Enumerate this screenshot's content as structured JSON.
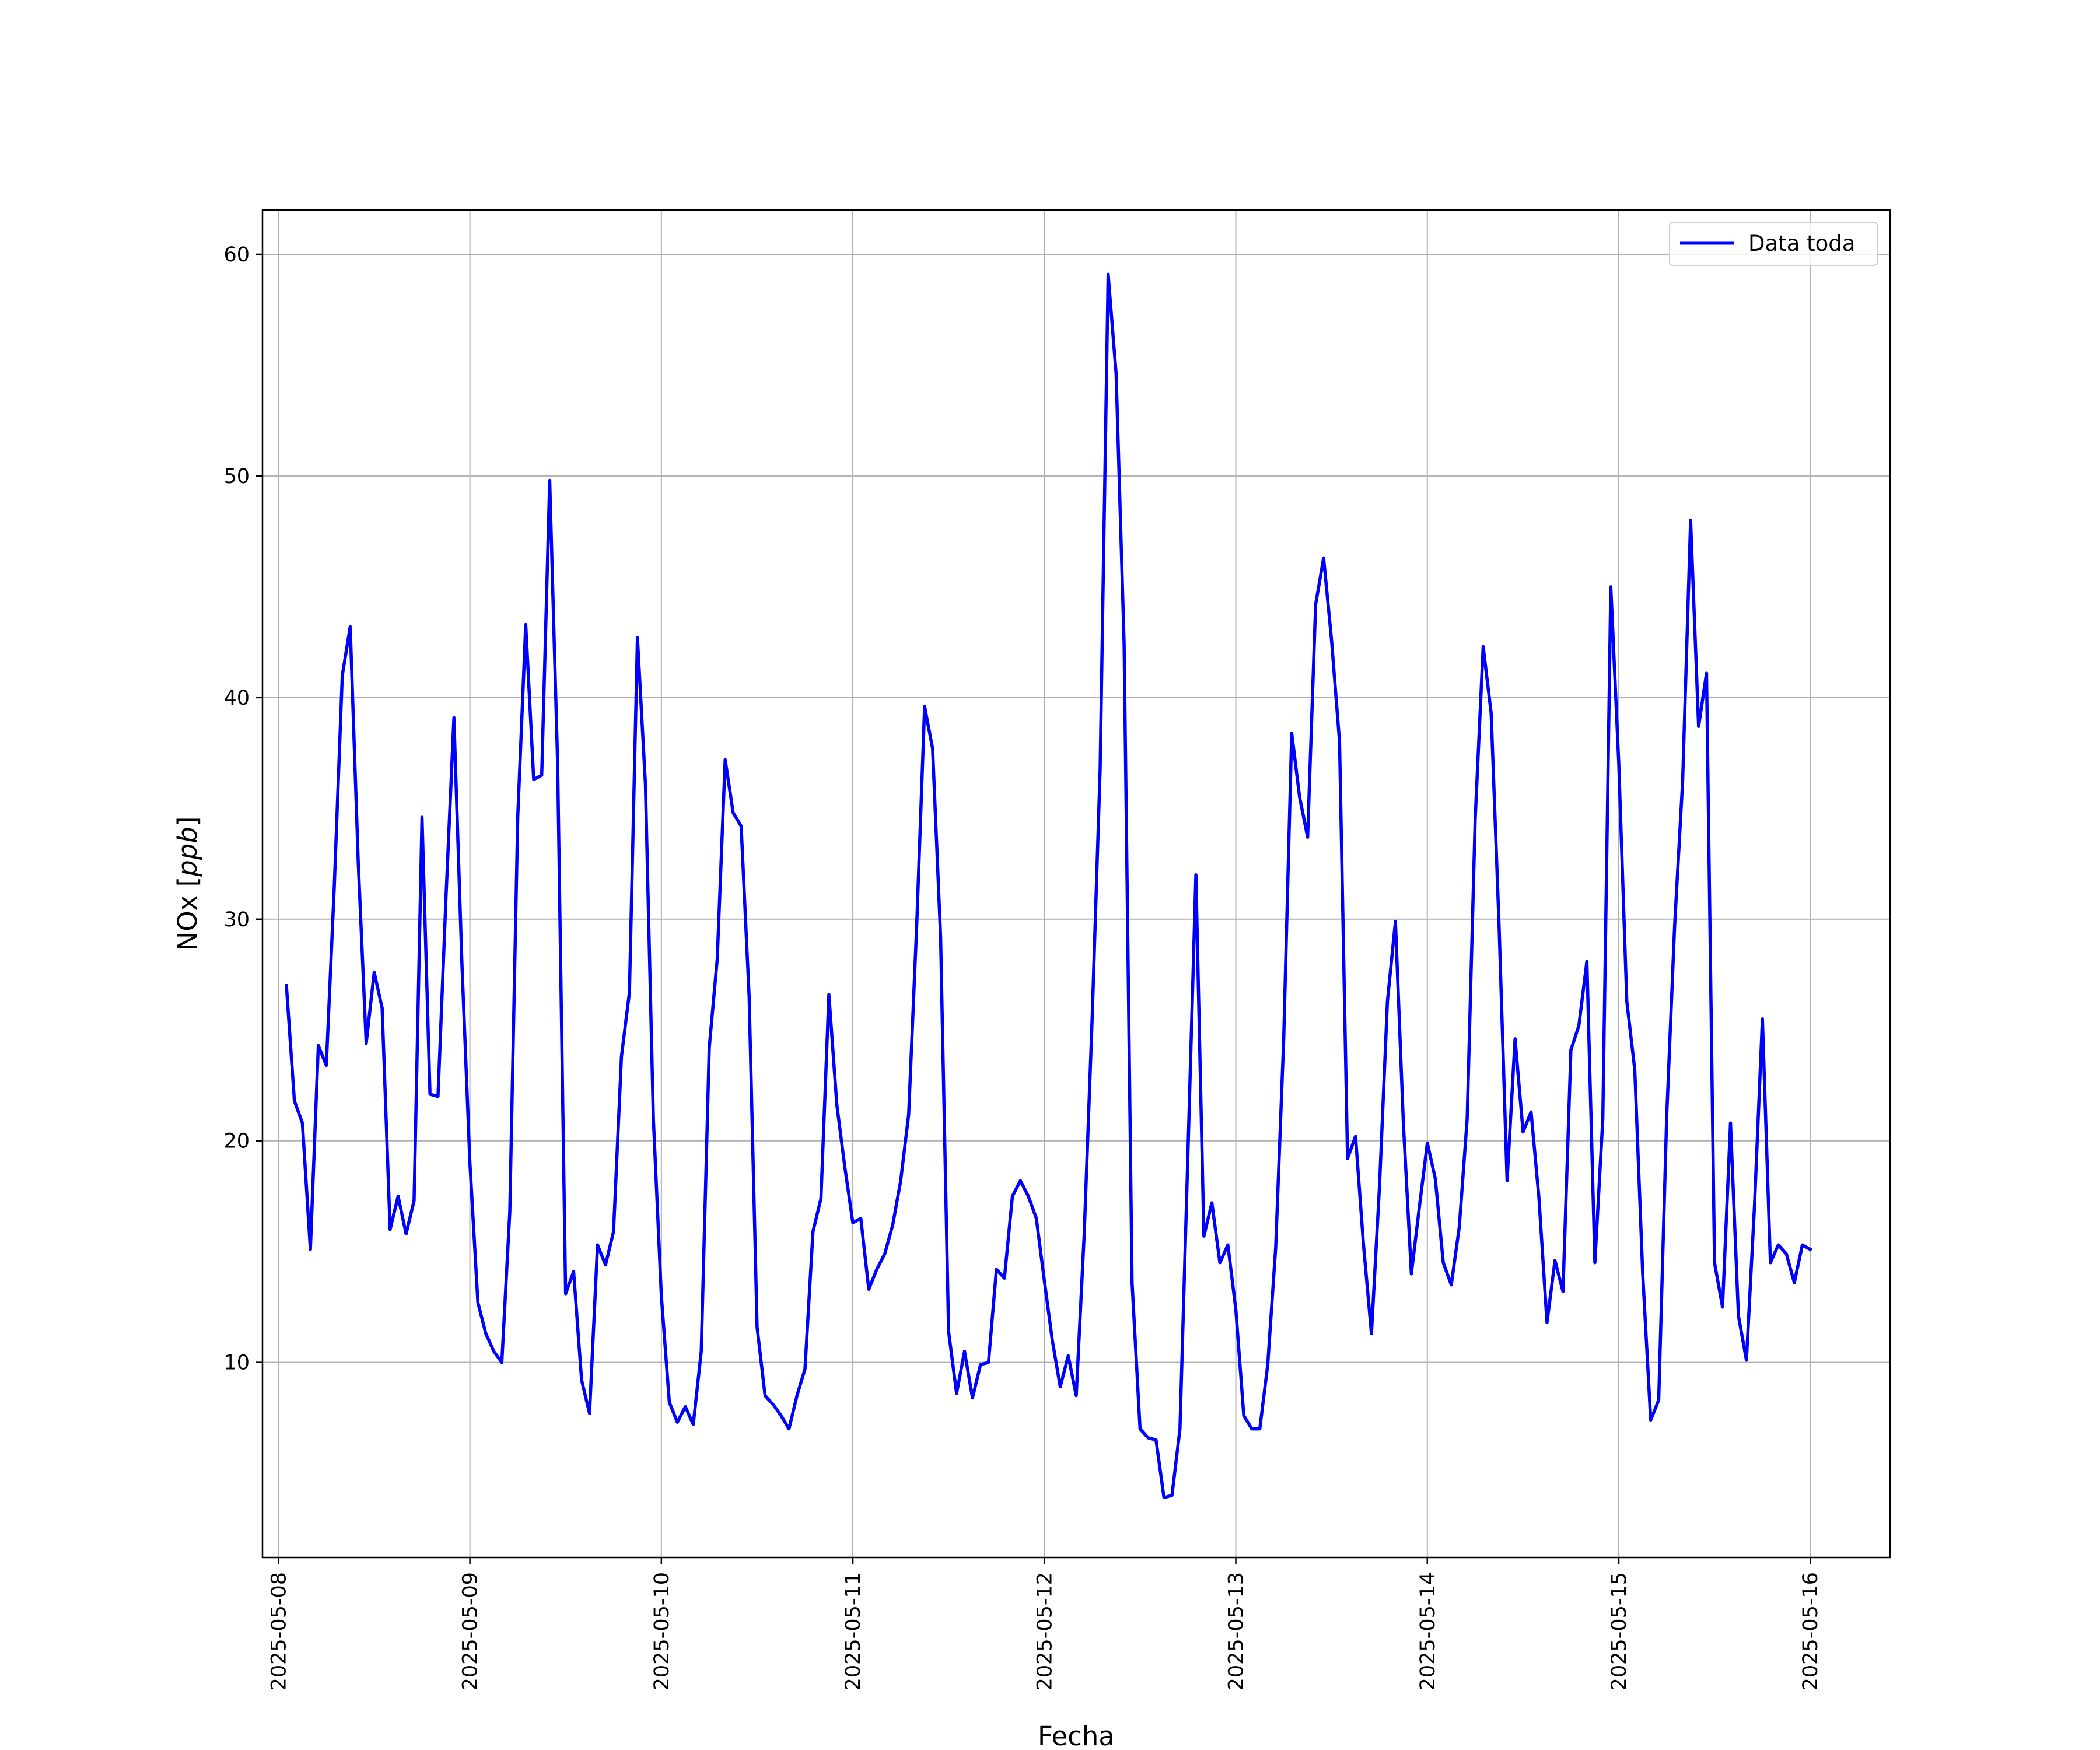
{
  "chart_data": {
    "type": "line",
    "xlabel": "Fecha",
    "ylabel": "NOx [ppb]",
    "ylabel_parts": {
      "main": "NOx [",
      "unit": "ppb",
      "close": "]"
    },
    "xlim": [
      "2025-05-07 22:00",
      "2025-05-16 10:00"
    ],
    "ylim": [
      1.2,
      62.0
    ],
    "x_ticks": [
      "2025-05-08",
      "2025-05-09",
      "2025-05-10",
      "2025-05-11",
      "2025-05-12",
      "2025-05-13",
      "2025-05-14",
      "2025-05-15",
      "2025-05-16"
    ],
    "y_ticks": [
      10,
      20,
      30,
      40,
      50,
      60
    ],
    "grid": true,
    "legend_position": "top-right",
    "series": [
      {
        "name": "Data toda",
        "color": "#0000ff",
        "x": [
          "2025-05-08 01:00",
          "2025-05-08 02:00",
          "2025-05-08 03:00",
          "2025-05-08 04:00",
          "2025-05-08 05:00",
          "2025-05-08 06:00",
          "2025-05-08 07:00",
          "2025-05-08 08:00",
          "2025-05-08 09:00",
          "2025-05-08 10:00",
          "2025-05-08 11:00",
          "2025-05-08 12:00",
          "2025-05-08 13:00",
          "2025-05-08 14:00",
          "2025-05-08 15:00",
          "2025-05-08 16:00",
          "2025-05-08 17:00",
          "2025-05-08 18:00",
          "2025-05-08 19:00",
          "2025-05-08 20:00",
          "2025-05-08 21:00",
          "2025-05-08 22:00",
          "2025-05-08 23:00",
          "2025-05-09 00:00",
          "2025-05-09 01:00",
          "2025-05-09 02:00",
          "2025-05-09 03:00",
          "2025-05-09 04:00",
          "2025-05-09 05:00",
          "2025-05-09 06:00",
          "2025-05-09 07:00",
          "2025-05-09 08:00",
          "2025-05-09 09:00",
          "2025-05-09 10:00",
          "2025-05-09 11:00",
          "2025-05-09 12:00",
          "2025-05-09 13:00",
          "2025-05-09 14:00",
          "2025-05-09 15:00",
          "2025-05-09 16:00",
          "2025-05-09 17:00",
          "2025-05-09 18:00",
          "2025-05-09 19:00",
          "2025-05-09 20:00",
          "2025-05-09 21:00",
          "2025-05-09 22:00",
          "2025-05-09 23:00",
          "2025-05-10 00:00",
          "2025-05-10 01:00",
          "2025-05-10 02:00",
          "2025-05-10 03:00",
          "2025-05-10 04:00",
          "2025-05-10 05:00",
          "2025-05-10 06:00",
          "2025-05-10 07:00",
          "2025-05-10 08:00",
          "2025-05-10 09:00",
          "2025-05-10 10:00",
          "2025-05-10 11:00",
          "2025-05-10 12:00",
          "2025-05-10 13:00",
          "2025-05-10 14:00",
          "2025-05-10 15:00",
          "2025-05-10 16:00",
          "2025-05-10 17:00",
          "2025-05-10 18:00",
          "2025-05-10 19:00",
          "2025-05-10 20:00",
          "2025-05-10 21:00",
          "2025-05-10 22:00",
          "2025-05-10 23:00",
          "2025-05-11 00:00",
          "2025-05-11 01:00",
          "2025-05-11 02:00",
          "2025-05-11 03:00",
          "2025-05-11 04:00",
          "2025-05-11 05:00",
          "2025-05-11 06:00",
          "2025-05-11 07:00",
          "2025-05-11 08:00",
          "2025-05-11 09:00",
          "2025-05-11 10:00",
          "2025-05-11 11:00",
          "2025-05-11 12:00",
          "2025-05-11 13:00",
          "2025-05-11 14:00",
          "2025-05-11 15:00",
          "2025-05-11 16:00",
          "2025-05-11 17:00",
          "2025-05-11 18:00",
          "2025-05-11 19:00",
          "2025-05-11 20:00",
          "2025-05-11 21:00",
          "2025-05-11 22:00",
          "2025-05-11 23:00",
          "2025-05-12 00:00",
          "2025-05-12 01:00",
          "2025-05-12 02:00",
          "2025-05-12 03:00",
          "2025-05-12 04:00",
          "2025-05-12 05:00",
          "2025-05-12 06:00",
          "2025-05-12 07:00",
          "2025-05-12 08:00",
          "2025-05-12 09:00",
          "2025-05-12 10:00",
          "2025-05-12 11:00",
          "2025-05-12 12:00",
          "2025-05-12 13:00",
          "2025-05-12 14:00",
          "2025-05-12 15:00",
          "2025-05-12 16:00",
          "2025-05-12 17:00",
          "2025-05-12 18:00",
          "2025-05-12 19:00",
          "2025-05-12 20:00",
          "2025-05-12 21:00",
          "2025-05-12 22:00",
          "2025-05-12 23:00",
          "2025-05-13 00:00",
          "2025-05-13 01:00",
          "2025-05-13 02:00",
          "2025-05-13 03:00",
          "2025-05-13 04:00",
          "2025-05-13 05:00",
          "2025-05-13 06:00",
          "2025-05-13 07:00",
          "2025-05-13 08:00",
          "2025-05-13 09:00",
          "2025-05-13 10:00",
          "2025-05-13 11:00",
          "2025-05-13 12:00",
          "2025-05-13 13:00",
          "2025-05-13 14:00",
          "2025-05-13 15:00",
          "2025-05-13 16:00",
          "2025-05-13 17:00",
          "2025-05-13 18:00",
          "2025-05-13 19:00",
          "2025-05-13 20:00",
          "2025-05-13 21:00",
          "2025-05-13 22:00",
          "2025-05-13 23:00",
          "2025-05-14 00:00",
          "2025-05-14 01:00",
          "2025-05-14 02:00",
          "2025-05-14 03:00",
          "2025-05-14 04:00",
          "2025-05-14 05:00",
          "2025-05-14 06:00",
          "2025-05-14 07:00",
          "2025-05-14 08:00",
          "2025-05-14 09:00",
          "2025-05-14 10:00",
          "2025-05-14 11:00",
          "2025-05-14 12:00",
          "2025-05-14 13:00",
          "2025-05-14 14:00",
          "2025-05-14 15:00",
          "2025-05-14 16:00",
          "2025-05-14 17:00",
          "2025-05-14 18:00",
          "2025-05-14 19:00",
          "2025-05-14 20:00",
          "2025-05-14 21:00",
          "2025-05-14 22:00",
          "2025-05-14 23:00",
          "2025-05-15 00:00",
          "2025-05-15 01:00",
          "2025-05-15 02:00",
          "2025-05-15 03:00",
          "2025-05-15 04:00",
          "2025-05-15 05:00",
          "2025-05-15 06:00",
          "2025-05-15 07:00",
          "2025-05-15 08:00",
          "2025-05-15 09:00",
          "2025-05-15 10:00",
          "2025-05-15 11:00",
          "2025-05-15 12:00",
          "2025-05-15 13:00",
          "2025-05-15 14:00",
          "2025-05-15 15:00",
          "2025-05-15 16:00",
          "2025-05-15 17:00",
          "2025-05-15 18:00",
          "2025-05-15 19:00",
          "2025-05-15 20:00",
          "2025-05-15 21:00",
          "2025-05-15 22:00",
          "2025-05-15 23:00",
          "2025-05-16 00:00"
        ],
        "y": [
          27.0,
          21.8,
          20.8,
          15.1,
          24.3,
          23.4,
          31.5,
          41.0,
          43.2,
          32.6,
          24.4,
          27.6,
          26.0,
          16.0,
          17.5,
          15.8,
          17.3,
          34.6,
          22.1,
          22.0,
          31.0,
          39.1,
          28.0,
          19.0,
          12.7,
          11.3,
          10.5,
          10.0,
          16.8,
          34.6,
          43.3,
          36.3,
          36.5,
          49.8,
          37.0,
          13.1,
          14.1,
          9.2,
          7.7,
          15.3,
          14.4,
          15.9,
          23.8,
          26.7,
          42.7,
          36.1,
          21.0,
          13.0,
          8.2,
          7.3,
          8.0,
          7.2,
          10.5,
          24.2,
          28.2,
          37.2,
          34.8,
          34.2,
          26.5,
          11.6,
          8.5,
          8.1,
          7.6,
          7.0,
          8.5,
          9.7,
          15.9,
          17.4,
          26.6,
          21.6,
          18.8,
          16.3,
          16.5,
          13.3,
          14.2,
          14.9,
          16.2,
          18.2,
          21.2,
          29.7,
          39.6,
          37.7,
          29.2,
          11.4,
          8.6,
          10.5,
          8.4,
          9.9,
          10.0,
          14.2,
          13.8,
          17.5,
          18.2,
          17.5,
          16.5,
          13.7,
          11.0,
          8.9,
          10.3,
          8.5,
          15.8,
          25.6,
          36.8,
          59.1,
          54.6,
          42.4,
          13.6,
          7.0,
          6.6,
          6.5,
          3.9,
          4.0,
          7.0,
          19.5,
          32.0,
          15.7,
          17.2,
          14.5,
          15.3,
          12.4,
          7.6,
          7.0,
          7.0,
          9.9,
          15.2,
          24.6,
          38.4,
          35.5,
          33.7,
          44.2,
          46.3,
          42.6,
          38.0,
          19.2,
          20.2,
          15.3,
          11.3,
          17.9,
          26.3,
          29.9,
          20.8,
          14.0,
          17.0,
          19.9,
          18.3,
          14.5,
          13.5,
          16.1,
          21.0,
          34.5,
          42.3,
          39.3,
          29.6,
          18.2,
          24.6,
          20.4,
          21.3,
          17.4,
          11.8,
          14.6,
          13.2,
          24.1,
          25.2,
          28.1,
          14.5,
          21.0,
          45.0,
          37.0,
          26.3,
          23.2,
          14.0,
          7.4,
          8.3,
          21.1,
          29.7,
          36.2,
          48.0,
          38.7,
          41.1,
          14.5,
          12.5,
          20.8,
          12.1,
          10.1,
          17.0,
          25.5,
          14.5,
          15.3,
          14.9,
          13.6,
          15.3,
          15.1
        ]
      }
    ]
  }
}
